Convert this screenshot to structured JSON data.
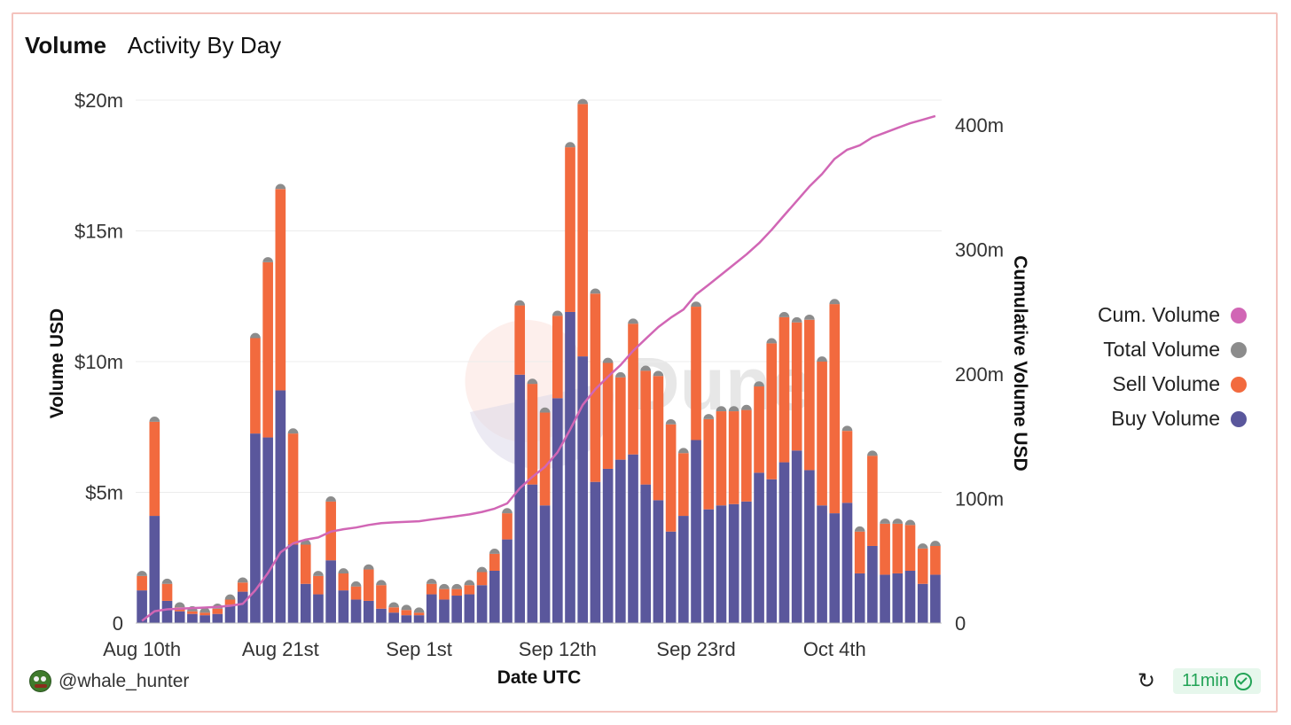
{
  "header": {
    "title": "Volume",
    "subtitle": "Activity By Day"
  },
  "footer": {
    "user": "@whale_hunter",
    "refresh_icon": "refresh-icon",
    "freshness": "11min",
    "verified_icon": "check-circle-icon"
  },
  "watermark": "Dune",
  "colors": {
    "buy": "#5a579c",
    "sell": "#f26a3e",
    "total": "#8c8c8c",
    "cum": "#d166b5",
    "grid": "#ececec"
  },
  "chart_data": {
    "type": "bar",
    "title": "Activity By Day",
    "xlabel": "Date UTC",
    "ylabel": "Volume USD",
    "y2label": "Cumulative Volume USD",
    "ylim": [
      0,
      20
    ],
    "y2lim": [
      0,
      420
    ],
    "yticks": [
      "0",
      "$5m",
      "$10m",
      "$15m",
      "$20m"
    ],
    "y2ticks": [
      "0",
      "100m",
      "200m",
      "300m",
      "400m"
    ],
    "xtick_labels": [
      "Aug 10th",
      "Aug 21st",
      "Sep 1st",
      "Sep 12th",
      "Sep 23rd",
      "Oct 4th"
    ],
    "xtick_index": [
      0,
      11,
      22,
      33,
      44,
      55
    ],
    "legend": [
      {
        "name": "Cum. Volume",
        "color": "#d166b5"
      },
      {
        "name": "Total Volume",
        "color": "#8c8c8c"
      },
      {
        "name": "Sell Volume",
        "color": "#f26a3e"
      },
      {
        "name": "Buy Volume",
        "color": "#5a579c"
      }
    ],
    "unit": "millions USD",
    "categories": [
      "Aug 10",
      "Aug 11",
      "Aug 12",
      "Aug 13",
      "Aug 14",
      "Aug 15",
      "Aug 16",
      "Aug 17",
      "Aug 18",
      "Aug 19",
      "Aug 20",
      "Aug 21",
      "Aug 22",
      "Aug 23",
      "Aug 24",
      "Aug 25",
      "Aug 26",
      "Aug 27",
      "Aug 28",
      "Aug 29",
      "Aug 30",
      "Aug 31",
      "Sep 1",
      "Sep 2",
      "Sep 3",
      "Sep 4",
      "Sep 5",
      "Sep 6",
      "Sep 7",
      "Sep 8",
      "Sep 9",
      "Sep 10",
      "Sep 11",
      "Sep 12",
      "Sep 13",
      "Sep 14",
      "Sep 15",
      "Sep 16",
      "Sep 17",
      "Sep 18",
      "Sep 19",
      "Sep 20",
      "Sep 21",
      "Sep 22",
      "Sep 23",
      "Sep 24",
      "Sep 25",
      "Sep 26",
      "Sep 27",
      "Sep 28",
      "Sep 29",
      "Sep 30",
      "Oct 1",
      "Oct 2",
      "Oct 3",
      "Oct 4",
      "Oct 5",
      "Oct 6",
      "Oct 7",
      "Oct 8",
      "Oct 9",
      "Oct 10",
      "Oct 11",
      "Oct 12"
    ],
    "series": [
      {
        "name": "Buy Volume",
        "values": [
          1.25,
          4.1,
          0.85,
          0.45,
          0.35,
          0.3,
          0.35,
          0.7,
          1.2,
          7.25,
          7.1,
          8.9,
          3.0,
          1.5,
          1.1,
          2.4,
          1.25,
          0.9,
          0.85,
          0.55,
          0.4,
          0.3,
          0.3,
          1.1,
          0.9,
          1.05,
          1.1,
          1.45,
          2.0,
          3.2,
          9.5,
          5.3,
          4.5,
          8.6,
          11.9,
          10.2,
          5.4,
          5.9,
          6.25,
          6.45,
          5.3,
          4.7,
          3.5,
          4.1,
          7.0,
          4.35,
          4.5,
          4.55,
          4.65,
          5.75,
          5.5,
          6.15,
          6.6,
          5.85,
          4.5,
          4.2,
          4.6,
          1.9,
          2.95,
          1.85,
          1.9,
          2.0,
          1.5,
          1.85
        ]
      },
      {
        "name": "Sell Volume",
        "values": [
          0.55,
          3.6,
          0.65,
          0.15,
          0.1,
          0.1,
          0.2,
          0.2,
          0.35,
          3.65,
          6.7,
          7.7,
          4.25,
          1.5,
          0.7,
          2.25,
          0.65,
          0.5,
          1.2,
          0.9,
          0.2,
          0.2,
          0.1,
          0.4,
          0.4,
          0.25,
          0.35,
          0.5,
          0.65,
          1.0,
          2.65,
          3.85,
          3.55,
          3.15,
          6.3,
          9.65,
          7.2,
          4.05,
          3.15,
          5.0,
          4.35,
          4.75,
          4.1,
          2.4,
          5.1,
          3.45,
          3.6,
          3.55,
          3.5,
          3.3,
          5.2,
          5.55,
          4.9,
          5.75,
          5.5,
          8.0,
          2.75,
          1.6,
          3.45,
          1.95,
          1.9,
          1.75,
          1.35,
          1.1
        ]
      }
    ],
    "total": [
      1.8,
      7.7,
      1.5,
      0.6,
      0.45,
      0.4,
      0.55,
      0.9,
      1.55,
      10.9,
      13.8,
      16.6,
      7.25,
      3.0,
      1.8,
      4.65,
      1.9,
      1.4,
      2.05,
      1.45,
      0.6,
      0.5,
      0.4,
      1.5,
      1.3,
      1.3,
      1.45,
      1.95,
      2.65,
      4.2,
      12.15,
      9.15,
      8.05,
      11.75,
      18.2,
      19.85,
      12.6,
      9.95,
      9.4,
      11.45,
      9.65,
      9.45,
      7.6,
      6.5,
      12.1,
      7.8,
      8.1,
      8.1,
      8.15,
      9.05,
      10.7,
      11.7,
      11.5,
      11.6,
      10.0,
      12.2,
      7.35,
      3.5,
      6.4,
      3.8,
      3.8,
      3.75,
      2.85,
      2.95
    ],
    "cumulative": [
      1.8,
      9.5,
      11.0,
      11.6,
      12.05,
      12.45,
      13.0,
      13.9,
      15.45,
      26.35,
      40.15,
      56.75,
      64.0,
      67.0,
      68.8,
      73.45,
      75.35,
      76.75,
      78.8,
      80.25,
      80.85,
      81.35,
      81.75,
      83.25,
      84.55,
      85.85,
      87.3,
      89.25,
      91.9,
      96.1,
      108.25,
      117.4,
      125.45,
      137.2,
      155.4,
      175.25,
      187.85,
      197.8,
      207.2,
      218.65,
      228.3,
      237.75,
      245.35,
      251.85,
      263.95,
      271.75,
      279.85,
      287.95,
      296.1,
      305.15,
      315.85,
      327.55,
      339.05,
      350.65,
      360.65,
      372.85,
      380.2,
      383.7,
      390.1,
      393.9,
      397.7,
      401.45,
      404.3,
      407.25
    ]
  }
}
